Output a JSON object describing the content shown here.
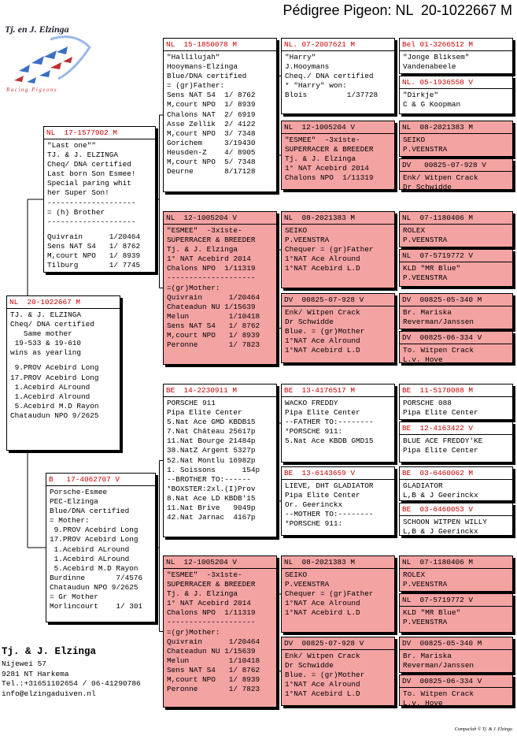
{
  "title": "Pédigree Pigeon: NL  20-1022667 M",
  "logo": {
    "name": "Tj. en J. Elzinga",
    "tagline": "Racing Pigeons"
  },
  "subject": {
    "ring": "NL  20-1022667 M",
    "fill": "#ffffff",
    "ring_color": "#cc0000",
    "paragraphs": [
      [
        "TJ. & J. ELZINGA",
        "Cheq/ DNA certified",
        "   Same mother",
        " 19-533 & 19-610",
        "wins as yearling"
      ],
      [
        " 9.PROV Acebird Long",
        "17.PROV Acebird Long",
        " 1.Acebird ALround",
        " 1.Acebird Alround",
        " 5.Acebird M.D Rayon",
        "Chataudun NPO 9/2625"
      ]
    ]
  },
  "parents": [
    {
      "ring": "NL  17-1577902 M",
      "fill": "#ffffff",
      "ring_color": "#cc0000",
      "paragraphs": [
        [
          "\"Last one\"\"",
          "TJ. & J. ELZINGA",
          "Cheq/ DNA certified",
          "Last born Son Esmee!",
          "Special paring whit",
          "her Super Son!",
          "--------------------",
          "= (h) Brother",
          "--------------------"
        ],
        [
          "Quivrain      1/20464",
          "Sens NAT S4   1/ 8762",
          "M,court NPO   1/ 8939",
          "Tilburg       1/ 7745"
        ]
      ]
    },
    {
      "ring": "B   17-4062707 V",
      "fill": "#ffffff",
      "ring_color": "#cc0000",
      "paragraphs": [
        [
          "Porsche-Esmee",
          "PEC-Elzinga",
          "Blue/DNA certified",
          "= Mother:",
          " 9.PROV Acebird Long",
          "17.PROV Acebird Long",
          " 1.Acebird ALround",
          " 1.Acebird ALround",
          " 5.Acebird M.D Rayon",
          "Burdinne       7/4576",
          "Chataudun NPO 9/2625",
          "= Gr Mother",
          "Morlincourt    1/ 301"
        ]
      ]
    }
  ],
  "grandparents": [
    {
      "ring": "NL  15-1850078 M",
      "fill": "#ffffff",
      "ring_color": "#cc0000",
      "paragraphs": [
        [
          "\"Hallilujah\"",
          "Hooymans-Elzinga",
          "Blue/DNA certified",
          "= (gr)Father:",
          "Sens NAT S4  1/ 8762",
          "M,court NPO  1/ 8939",
          "Chalons NAT  2/ 6919",
          "Asse Zellik  2/ 4122",
          "M,court NPO  3/ 7348",
          "Gorichem     3/19430",
          "Heusden-Z    4/ 8905",
          "M,court NPO  5/ 7348",
          "Deurne       8/17128"
        ]
      ]
    },
    {
      "ring": "NL  12-1005204 V",
      "fill": "#f4a3a3",
      "ring_color": "#000000",
      "paragraphs": [
        [
          "\"ESMEE\"  -3x1ste-",
          "SUPERRACER & BREEDER",
          "Tj. & J. Elzinga",
          "1° NAT Acebird 2014",
          "Chalons NPO  1/11319",
          "--------------------",
          "=(gr)Mother:",
          "Quivrain      1/20464",
          "Chateadun NU 1/15639",
          "Melun         1/10418",
          "Sens NAT S4   1/ 8762",
          "M,court NPO   1/ 8939",
          "Peronne       1/ 7823"
        ]
      ]
    },
    {
      "ring": "BE  14-2230911 M",
      "fill": "#ffffff",
      "ring_color": "#cc0000",
      "paragraphs": [
        [
          "PORSCHE 911",
          "Pipa Elite Center",
          "5.Nat Ace GMD KBDB15",
          "7.Nat Château 25617p",
          "11.Nat Bourge 21484p",
          "38.NatZ Argent 5327p",
          "52.Nat Montlu 16982p",
          "1. Soissons      154p",
          "--BROTHER TO:------",
          "*BOXSTER:2xl.(I)Prov",
          "8.Nat Ace LD KBDB'15",
          "11.Nat Brive   9049p",
          "42.Nat Jarnac  4167p"
        ]
      ]
    },
    {
      "ring": "NL  12-1005204 V",
      "fill": "#f4a3a3",
      "ring_color": "#000000",
      "paragraphs": [
        [
          "\"ESMEE\"  -3x1ste-",
          "SUPERRACER & BREEDER",
          "Tj. & J. Elzinga",
          "1° NAT Acebird 2014",
          "Chalons NPO  1/11319",
          "--------------------",
          "=(gr)Mother:",
          "Quivrain      1/20464",
          "Chateadun NU 1/15639",
          "Melun         1/10418",
          "Sens NAT S4   1/ 8762",
          "M,court NPO   1/ 8939",
          "Peronne       1/ 7823"
        ]
      ]
    }
  ],
  "great_grandparents": [
    {
      "ring": "NL. 07-2007621 M",
      "fill": "#ffffff",
      "ring_color": "#cc0000",
      "paragraphs": [
        [
          "\"Harry\"",
          "J.Hooymans",
          "Cheq./ DNA certified",
          "* \"Harry\" won:",
          "Blois         1/37728"
        ]
      ]
    },
    {
      "ring": "NL  12-1005204 V",
      "fill": "#f4a3a3",
      "ring_color": "#000000",
      "paragraphs": [
        [
          "\"ESMEE\"  -3x1ste-",
          "SUPERRACER & BREEDER",
          "Tj. & J. Elzinga",
          "1° NAT Acebird 2014",
          "Chalons NPO  1/11319"
        ]
      ]
    },
    {
      "ring": "NL  08-2021383 M",
      "fill": "#f4a3a3",
      "ring_color": "#000000",
      "paragraphs": [
        [
          "SEIKO",
          "P.VEENSTRA",
          "Chequer = (gr)Father",
          "1°NAT Ace Alround",
          "1°NAT Acebird L.D"
        ]
      ]
    },
    {
      "ring": "DV  00825-07-928 V",
      "fill": "#f4a3a3",
      "ring_color": "#000000",
      "paragraphs": [
        [
          "Enk/ Witpen Crack",
          "Dr Schwidde",
          "Blue. = (gr)Mother",
          "1°NAT Ace Alround",
          "1°NAT Acebird L.D"
        ]
      ]
    },
    {
      "ring": "BE  13-4176517 M",
      "fill": "#ffffff",
      "ring_color": "#cc0000",
      "paragraphs": [
        [
          "WACKO FREDDY",
          "Pipa Elite Center",
          "--FATHER TO:--------",
          "*PORSCHE 911:",
          "5.Nat Ace KBDB GMD15"
        ]
      ]
    },
    {
      "ring": "BE  13-6143659 V",
      "fill": "#ffffff",
      "ring_color": "#cc0000",
      "paragraphs": [
        [
          "LIEVE, DHT GLADIATOR",
          "Pipa Elite Center",
          "Or. Geerinckx",
          "--MOTHER TO:--------",
          "*PORSCHE 911:"
        ]
      ]
    },
    {
      "ring": "NL  08-2021383 M",
      "fill": "#f4a3a3",
      "ring_color": "#000000",
      "paragraphs": [
        [
          "SEIKO",
          "P.VEENSTRA",
          "Chequer = (gr)Father",
          "1°NAT Ace Alround",
          "1°NAT Acebird L.D"
        ]
      ]
    },
    {
      "ring": "DV  00825-07-928 V",
      "fill": "#f4a3a3",
      "ring_color": "#000000",
      "paragraphs": [
        [
          "Enk/ Witpen Crack",
          "Dr Schwidde",
          "Blue. = (gr)Mother",
          "1°NAT Ace Alround",
          "1°NAT Acebird L.D"
        ]
      ]
    }
  ],
  "gg_grandparents": [
    {
      "ring": "Bel 01-3266512 M",
      "fill": "#ffffff",
      "ring_color": "#cc0000",
      "paragraphs": [
        [
          "\"Jonge Bliksem\"",
          "Vandenabeele"
        ]
      ]
    },
    {
      "ring": "NL. 05-1936558 V",
      "fill": "#ffffff",
      "ring_color": "#cc0000",
      "paragraphs": [
        [
          "\"Dirkje\"",
          "C & G Koopman"
        ]
      ]
    },
    {
      "ring": "NL  08-2021383 M",
      "fill": "#f4a3a3",
      "ring_color": "#000000",
      "paragraphs": [
        [
          "SEIKO",
          "P.VEENSTRA"
        ]
      ]
    },
    {
      "ring": "DV   00825-07-928 V",
      "fill": "#f4a3a3",
      "ring_color": "#000000",
      "paragraphs": [
        [
          "Enk/ Witpen Crack",
          "Dr Schwidde"
        ]
      ]
    },
    {
      "ring": "NL  07-1180406 M",
      "fill": "#f4a3a3",
      "ring_color": "#000000",
      "paragraphs": [
        [
          "ROLEX",
          "P.VEENSTRA"
        ]
      ]
    },
    {
      "ring": "NL  07-5719772 V",
      "fill": "#f4a3a3",
      "ring_color": "#000000",
      "paragraphs": [
        [
          "KLD \"MR Blue\"",
          "P.VEENSTRA"
        ]
      ]
    },
    {
      "ring": "DV  00825-05-340 M",
      "fill": "#f4a3a3",
      "ring_color": "#000000",
      "paragraphs": [
        [
          "Br. Mariska",
          "Reverman/Janssen"
        ]
      ]
    },
    {
      "ring": "DV  00825-06-334 V",
      "fill": "#f4a3a3",
      "ring_color": "#000000",
      "paragraphs": [
        [
          "To. Witpen Crack",
          "L.v. Hove"
        ]
      ]
    },
    {
      "ring": "BE  11-5170088 M",
      "fill": "#ffffff",
      "ring_color": "#cc0000",
      "paragraphs": [
        [
          "PORSCHE 088",
          "Pipa Elite Center"
        ]
      ]
    },
    {
      "ring": "BE  12-4163422 V",
      "fill": "#ffffff",
      "ring_color": "#cc0000",
      "paragraphs": [
        [
          "BLUE ACE FREDDY'KE",
          "Pipa Elite Center"
        ]
      ]
    },
    {
      "ring": "BE  03-6460062 M",
      "fill": "#ffffff",
      "ring_color": "#cc0000",
      "paragraphs": [
        [
          "GLADIATOR",
          "L,B & J Geerinckx"
        ]
      ]
    },
    {
      "ring": "BE  03-6460053 V",
      "fill": "#ffffff",
      "ring_color": "#cc0000",
      "paragraphs": [
        [
          "SCHOON WITPEN WILLY",
          "L,B & J Geerinckx"
        ]
      ]
    },
    {
      "ring": "NL  07-1180406 M",
      "fill": "#f4a3a3",
      "ring_color": "#000000",
      "paragraphs": [
        [
          "ROLEX",
          "P.VEENSTRA"
        ]
      ]
    },
    {
      "ring": "NL  07-5719772 V",
      "fill": "#f4a3a3",
      "ring_color": "#000000",
      "paragraphs": [
        [
          "KLD \"MR Blue\"",
          "P.VEENSTRA"
        ]
      ]
    },
    {
      "ring": "DV  00825-05-340 M",
      "fill": "#f4a3a3",
      "ring_color": "#000000",
      "paragraphs": [
        [
          "Br. Mariska",
          "Reverman/Janssen"
        ]
      ]
    },
    {
      "ring": "DV  00825-06-334 V",
      "fill": "#f4a3a3",
      "ring_color": "#000000",
      "paragraphs": [
        [
          "To. Witpen Crack",
          "L.v. Hove"
        ]
      ]
    }
  ],
  "footer": {
    "name": "Tj. & J. Elzinga",
    "lines": [
      "Nijewei 57",
      "9281 NT  Harkema",
      "Tel.:+31651102654 / 06-41290786",
      "info@elzingaduiven.nl"
    ],
    "credit": "Compuclub © Tj. & J. Elzinga"
  }
}
